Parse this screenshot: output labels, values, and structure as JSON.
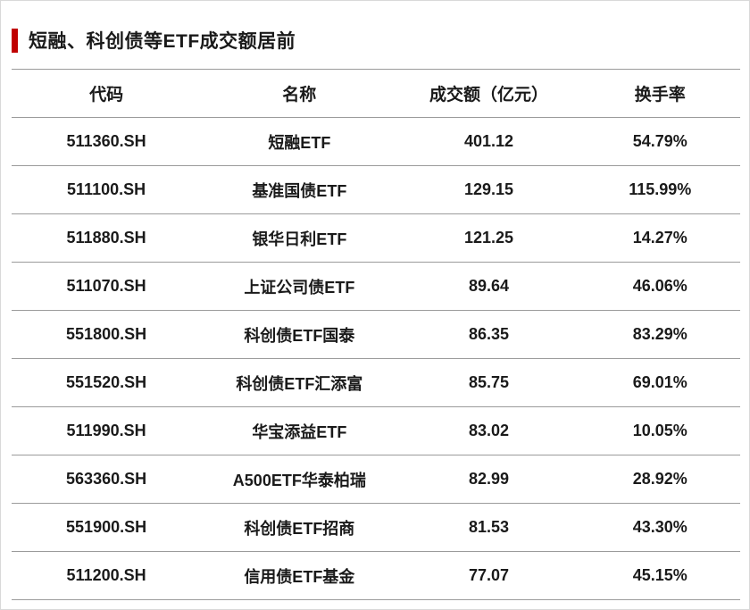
{
  "title": "短融、科创债等ETF成交额居前",
  "accent_color": "#c00000",
  "table": {
    "headers": [
      "代码",
      "名称",
      "成交额（亿元）",
      "换手率"
    ],
    "rows": [
      [
        "511360.SH",
        "短融ETF",
        "401.12",
        "54.79%"
      ],
      [
        "511100.SH",
        "基准国债ETF",
        "129.15",
        "115.99%"
      ],
      [
        "511880.SH",
        "银华日利ETF",
        "121.25",
        "14.27%"
      ],
      [
        "511070.SH",
        "上证公司债ETF",
        "89.64",
        "46.06%"
      ],
      [
        "551800.SH",
        "科创债ETF国泰",
        "86.35",
        "83.29%"
      ],
      [
        "551520.SH",
        "科创债ETF汇添富",
        "85.75",
        "69.01%"
      ],
      [
        "511990.SH",
        "华宝添益ETF",
        "83.02",
        "10.05%"
      ],
      [
        "563360.SH",
        "A500ETF华泰柏瑞",
        "82.99",
        "28.92%"
      ],
      [
        "551900.SH",
        "科创债ETF招商",
        "81.53",
        "43.30%"
      ],
      [
        "511200.SH",
        "信用债ETF基金",
        "77.07",
        "45.15%"
      ]
    ]
  },
  "chart_data": {
    "type": "table",
    "title": "短融、科创债等ETF成交额居前",
    "columns": [
      "代码",
      "名称",
      "成交额（亿元）",
      "换手率"
    ],
    "rows": [
      {
        "代码": "511360.SH",
        "名称": "短融ETF",
        "成交额（亿元）": 401.12,
        "换手率": "54.79%"
      },
      {
        "代码": "511100.SH",
        "名称": "基准国债ETF",
        "成交额（亿元）": 129.15,
        "换手率": "115.99%"
      },
      {
        "代码": "511880.SH",
        "名称": "银华日利ETF",
        "成交额（亿元）": 121.25,
        "换手率": "14.27%"
      },
      {
        "代码": "511070.SH",
        "名称": "上证公司债ETF",
        "成交额（亿元）": 89.64,
        "换手率": "46.06%"
      },
      {
        "代码": "551800.SH",
        "名称": "科创债ETF国泰",
        "成交额（亿元）": 86.35,
        "换手率": "83.29%"
      },
      {
        "代码": "551520.SH",
        "名称": "科创债ETF汇添富",
        "成交额（亿元）": 85.75,
        "换手率": "69.01%"
      },
      {
        "代码": "511990.SH",
        "名称": "华宝添益ETF",
        "成交额（亿元）": 83.02,
        "换手率": "10.05%"
      },
      {
        "代码": "563360.SH",
        "名称": "A500ETF华泰柏瑞",
        "成交额（亿元）": 82.99,
        "换手率": "28.92%"
      },
      {
        "代码": "551900.SH",
        "名称": "科创债ETF招商",
        "成交额（亿元）": 81.53,
        "换手率": "43.30%"
      },
      {
        "代码": "511200.SH",
        "名称": "信用债ETF基金",
        "成交额（亿元）": 77.07,
        "换手率": "45.15%"
      }
    ]
  }
}
